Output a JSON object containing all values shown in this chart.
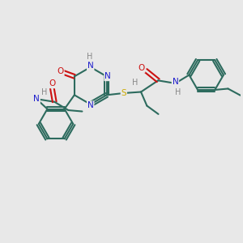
{
  "bg_color": "#e8e8e8",
  "bond_color": "#2d6b5e",
  "N_color": "#1a1acc",
  "O_color": "#cc1111",
  "S_color": "#ccaa00",
  "H_color": "#888888",
  "figsize": [
    3.0,
    3.0
  ],
  "dpi": 100,
  "xlim": [
    0,
    10
  ],
  "ylim": [
    0,
    10
  ]
}
